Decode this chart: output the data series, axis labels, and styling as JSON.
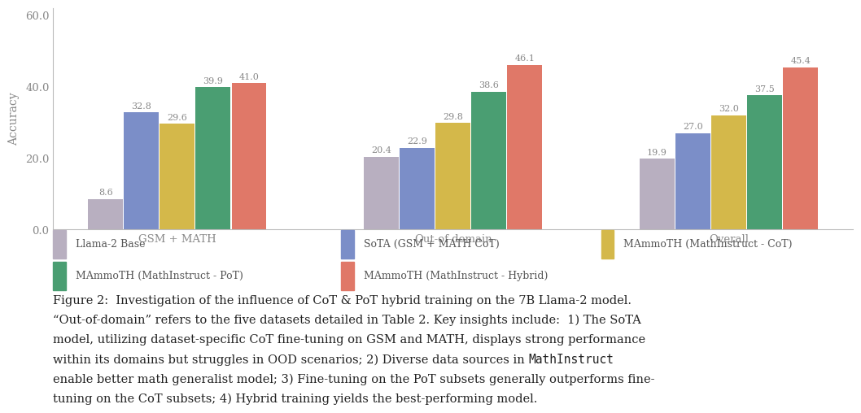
{
  "categories": [
    "GSM + MATH",
    "Out-of-domain",
    "Overall"
  ],
  "series": [
    {
      "label": "Llama-2 Base",
      "color": "#b8afc0",
      "values": [
        8.6,
        20.4,
        19.9
      ]
    },
    {
      "label": "SoTA (GSM + MATH CoT)",
      "color": "#7b8ec8",
      "values": [
        32.8,
        22.9,
        27.0
      ]
    },
    {
      "label": "MAmmoTH (MathInstruct - CoT)",
      "color": "#d4b84a",
      "values": [
        29.6,
        29.8,
        32.0
      ]
    },
    {
      "label": "MAmmoTH (MathInstruct - PoT)",
      "color": "#4a9e72",
      "values": [
        39.9,
        38.6,
        37.5
      ]
    },
    {
      "label": "MAmmoTH (MathInstruct - Hybrid)",
      "color": "#e07868",
      "values": [
        41.0,
        46.1,
        45.4
      ]
    }
  ],
  "ylabel": "Accuracy",
  "ylim": [
    0,
    62
  ],
  "yticks": [
    0.0,
    20.0,
    40.0,
    60.0
  ],
  "bar_width": 0.13,
  "group_centers": [
    0.0,
    1.0,
    2.0
  ],
  "value_fontsize": 8.0,
  "legend_fontsize": 9.0,
  "axis_label_fontsize": 10,
  "tick_fontsize": 9.5,
  "caption_fontsize": 10.5,
  "caption_line1": "Figure 2:  Investigation of the influence of CoT & PoT hybrid training on the 7B Llama-2 model.",
  "caption_line2": "“Out-of-domain” refers to the five datasets detailed in Table 2. Key insights include:  1) The SoTA",
  "caption_line3": "model, utilizing dataset-specific CoT fine-tuning on GSM and MATH, displays strong performance",
  "caption_line4": "within its domains but struggles in OOD scenarios; 2) Diverse data sources in ",
  "caption_line4b": "MathInstruct",
  "caption_line4c": "",
  "caption_line5": "enable better math generalist model; 3) Fine-tuning on the PoT subsets generally outperforms fine-",
  "caption_line6": "tuning on the CoT subsets; 4) Hybrid training yields the best-performing model.",
  "bg_color": "#ffffff",
  "spine_color": "#bbbbbb",
  "label_color": "#888888",
  "value_color": "#888888"
}
